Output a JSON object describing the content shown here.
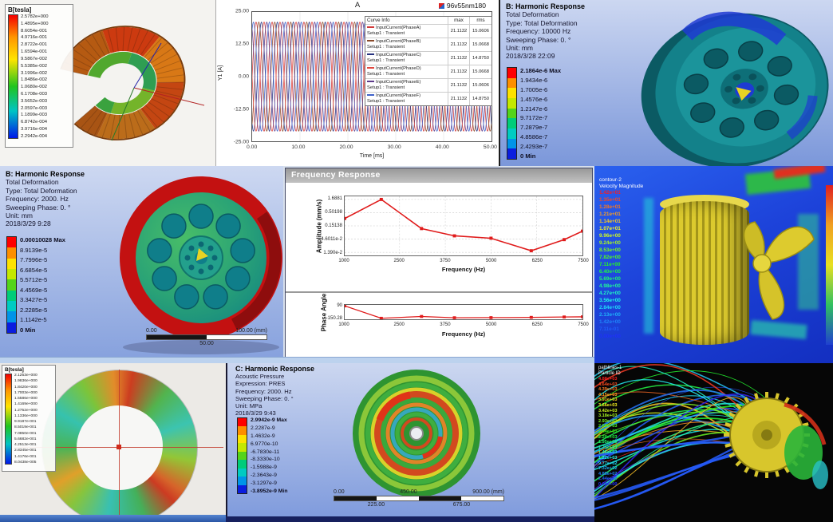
{
  "colors": {
    "ansys_bands": [
      "#fe0000",
      "#fd8f00",
      "#fde200",
      "#c4e800",
      "#54d41b",
      "#00cc7a",
      "#00cbc2",
      "#0094e8",
      "#0a1ddf"
    ],
    "accent_red": "#e01b1b",
    "cfd_background": "#1d43da",
    "pathline_background": "#060606"
  },
  "panels": {
    "maxwell_segment": {
      "legend_title": "B[tesla]",
      "legend_values": [
        "2.5782e+000",
        "1.4895e+000",
        "8.6054e-001",
        "4.9716e-001",
        "2.8722e-001",
        "1.6594e-001",
        "9.5867e-002",
        "5.5385e-002",
        "3.1996e-002",
        "1.8486e-002",
        "1.0680e-002",
        "6.1708e-003",
        "3.5652e-003",
        "2.0597e-003",
        "1.1899e-003",
        "6.8742e-004",
        "3.9716e-004",
        "2.2942e-004"
      ]
    },
    "harmonic_top": {
      "lines": [
        "B: Harmonic Response",
        "Total Deformation",
        "Type: Total Deformation",
        "Frequency: 10000 Hz",
        "Sweeping Phase: 0. °",
        "Unit: mm",
        "2018/3/28 22:09"
      ],
      "legend": [
        "2.1864e-6 Max",
        "1.9434e-6",
        "1.7005e-6",
        "1.4576e-6",
        "1.2147e-6",
        "9.7172e-7",
        "7.2879e-7",
        "4.8586e-7",
        "2.4293e-7",
        "0 Min"
      ]
    },
    "harmonic_mid": {
      "lines": [
        "B: Harmonic Response",
        "Total Deformation",
        "Type: Total Deformation",
        "Frequency: 2000. Hz",
        "Sweeping Phase: 0. °",
        "Unit: mm",
        "2018/3/29 9:28"
      ],
      "legend": [
        "0.00010028 Max",
        "8.9139e-5",
        "7.7996e-5",
        "6.6854e-5",
        "5.5712e-5",
        "4.4569e-5",
        "3.3427e-5",
        "2.2285e-5",
        "1.1142e-5",
        "0 Min"
      ],
      "ruler": {
        "start": "0.00",
        "end": "100.00 (mm)",
        "mid": "50.00"
      }
    },
    "freq_response": {
      "window_title": "Frequency Response"
    },
    "cfd_velocity": {
      "title_line1": "contour-2",
      "title_line2": "Velocity Magnitude",
      "values": [
        "1.42e+01",
        "1.35e+01",
        "1.28e+01",
        "1.21e+01",
        "1.14e+01",
        "1.07e+01",
        "9.96e+00",
        "9.24e+00",
        "8.53e+00",
        "7.82e+00",
        "7.11e+00",
        "6.40e+00",
        "5.69e+00",
        "4.98e+00",
        "4.27e+00",
        "3.56e+00",
        "2.84e+00",
        "2.13e+00",
        "1.42e+00",
        "7.11e-01",
        "0.00e+00"
      ]
    },
    "maxwell_ring": {
      "legend_title": "B[tesla]",
      "legend_values": [
        "2.1253e+000",
        "1.9836e+000",
        "1.8420e+000",
        "1.7003e+000",
        "1.5586e+000",
        "1.4169e+000",
        "1.2752e+000",
        "1.1336e+000",
        "9.9187e-001",
        "8.5019e-001",
        "7.0850e-001",
        "5.6682e-001",
        "4.2513e-001",
        "2.8345e-001",
        "1.4176e-001",
        "8.0438e-005"
      ]
    },
    "acoustic": {
      "lines": [
        "C: Harmonic Response",
        "Acoustic Pressure",
        "Expression: PRES",
        "Frequency: 2000. Hz",
        "Sweeping Phase: 0. °",
        "Unit: MPa",
        "2018/3/29 9:43"
      ],
      "legend": [
        "2.9942e-9 Max",
        "2.2287e-9",
        "1.4632e-9",
        "6.9770e-10",
        "-6.7830e-11",
        "-8.3330e-10",
        "-1.5988e-9",
        "-2.3643e-9",
        "-3.1297e-9",
        "-3.8952e-9 Min"
      ],
      "ruler": {
        "start": "0.00",
        "mid": "450.00",
        "end": "900.00 (mm)",
        "q1": "225.00",
        "q3": "675.00"
      }
    },
    "pathlines": {
      "title_line1": "pathlines-1",
      "title_line2": "Particle ID",
      "values": [
        "4.88e+03",
        "4.64e+03",
        "4.39e+03",
        "4.15e+03",
        "3.91e+03",
        "3.66e+03",
        "3.42e+03",
        "3.18e+03",
        "2.93e+03",
        "2.69e+03",
        "2.44e+03",
        "2.20e+03",
        "1.95e+03",
        "1.71e+03",
        "1.46e+03",
        "1.22e+03",
        "9.77e+02",
        "7.32e+02",
        "4.88e+02",
        "2.44e+02",
        "0.00e+00"
      ]
    }
  },
  "chart_data": [
    {
      "type": "line",
      "title": "A",
      "corner_label": "96v55nm180",
      "xlabel": "Time [ms]",
      "ylabel": "Y1 [A]",
      "xlim": [
        0,
        50
      ],
      "ylim": [
        -25,
        25
      ],
      "x_ticks": [
        "0.00",
        "10.00",
        "20.00",
        "30.00",
        "40.00",
        "50.00"
      ],
      "y_ticks": [
        "25.00",
        "12.50",
        "0.00",
        "-12.50",
        "-25.00"
      ],
      "amplitude": 21.1132,
      "cycles": 15,
      "legend_headers": [
        "Curve Info",
        "max",
        "rms"
      ],
      "series": [
        {
          "name": "InputCurrent(PhaseA)",
          "setup": "Setup1 : Transient",
          "max": "21.1132",
          "rms": "15.0606",
          "color": "#d23b3b",
          "phase_deg": 0
        },
        {
          "name": "InputCurrent(PhaseB)",
          "setup": "Setup1 : Transient",
          "max": "21.1132",
          "rms": "15.0668",
          "color": "#8a4a2a",
          "phase_deg": -60
        },
        {
          "name": "InputCurrent(PhaseC)",
          "setup": "Setup1 : Transient",
          "max": "21.1132",
          "rms": "14.8750",
          "color": "#27337f",
          "phase_deg": -120
        },
        {
          "name": "InputCurrent(PhaseD)",
          "setup": "Setup1 : Transient",
          "max": "21.1132",
          "rms": "15.0668",
          "color": "#e0483f",
          "phase_deg": -180
        },
        {
          "name": "InputCurrent(PhaseE)",
          "setup": "Setup1 : Transient",
          "max": "21.1132",
          "rms": "15.0606",
          "color": "#5d3b8a",
          "phase_deg": -240
        },
        {
          "name": "InputCurrent(PhaseF)",
          "setup": "Setup1 : Transient",
          "max": "21.1132",
          "rms": "14.8750",
          "color": "#3f62c9",
          "phase_deg": -300
        }
      ]
    },
    {
      "type": "line",
      "ylabel": "Amplitude (mm/s)",
      "xlabel": "Frequency (Hz)",
      "y_scale": "log",
      "y_ticks": [
        "1.6881",
        "0.50198",
        "0.15138",
        "4.6011e-2",
        "1.390e-2"
      ],
      "x_ticks": [
        "1000",
        "2500",
        "3750",
        "5000",
        "6250",
        "7500"
      ],
      "x": [
        1000,
        2000,
        3100,
        4000,
        5000,
        6100,
        7000,
        7600
      ],
      "y": [
        0.3,
        1.6881,
        0.12,
        0.062,
        0.05,
        0.016,
        0.044,
        0.095
      ],
      "color": "#e01b1b",
      "grid": true,
      "legend_position": "none"
    },
    {
      "type": "line",
      "ylabel": "Phase Angle",
      "xlabel": "Frequency (Hz)",
      "y_ticks": [
        "90",
        "-150.28"
      ],
      "x_ticks": [
        "1000",
        "2500",
        "3750",
        "5000",
        "6250",
        "7500"
      ],
      "ylim": [
        -170,
        110
      ],
      "x": [
        1000,
        2000,
        3100,
        4000,
        5000,
        6100,
        7000,
        7600
      ],
      "y": [
        90,
        -150.28,
        -115,
        -140,
        -138,
        -133,
        -125,
        -122
      ],
      "color": "#e01b1b",
      "grid": false,
      "legend_position": "none"
    }
  ]
}
